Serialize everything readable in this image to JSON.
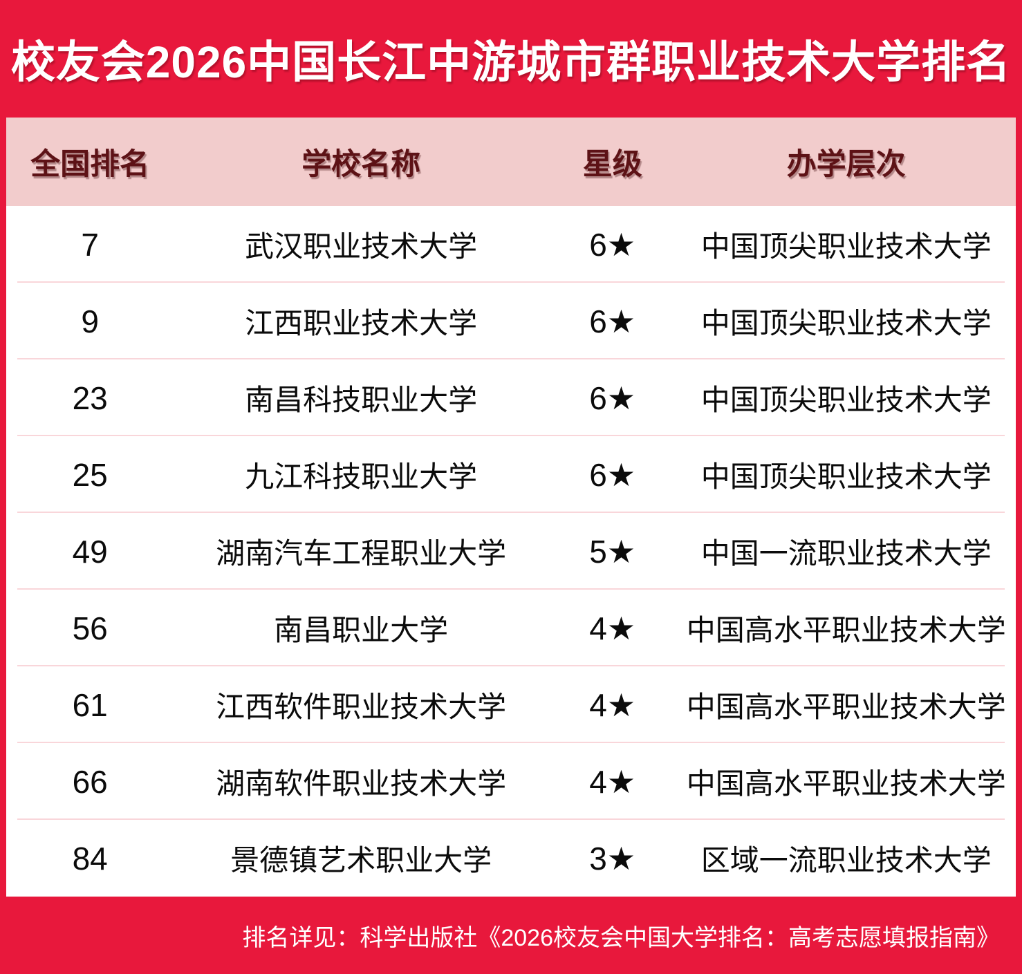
{
  "title": "校友会2026中国长江中游城市群职业技术大学排名",
  "chart_data": {
    "type": "table",
    "title": "校友会2026中国长江中游城市群职业技术大学排名",
    "columns": [
      "全国排名",
      "学校名称",
      "星级",
      "办学层次"
    ],
    "rows": [
      {
        "rank": "7",
        "school": "武汉职业技术大学",
        "stars": "6★",
        "level": "中国顶尖职业技术大学"
      },
      {
        "rank": "9",
        "school": "江西职业技术大学",
        "stars": "6★",
        "level": "中国顶尖职业技术大学"
      },
      {
        "rank": "23",
        "school": "南昌科技职业大学",
        "stars": "6★",
        "level": "中国顶尖职业技术大学"
      },
      {
        "rank": "25",
        "school": "九江科技职业大学",
        "stars": "6★",
        "level": "中国顶尖职业技术大学"
      },
      {
        "rank": "49",
        "school": "湖南汽车工程职业大学",
        "stars": "5★",
        "level": "中国一流职业技术大学"
      },
      {
        "rank": "56",
        "school": "南昌职业大学",
        "stars": "4★",
        "level": "中国高水平职业技术大学"
      },
      {
        "rank": "61",
        "school": "江西软件职业技术大学",
        "stars": "4★",
        "level": "中国高水平职业技术大学"
      },
      {
        "rank": "66",
        "school": "湖南软件职业技术大学",
        "stars": "4★",
        "level": "中国高水平职业技术大学"
      },
      {
        "rank": "84",
        "school": "景德镇艺术职业大学",
        "stars": "3★",
        "level": "区域一流职业技术大学"
      }
    ],
    "footnote": "排名详见：科学出版社《2026校友会中国大学排名：高考志愿填报指南》"
  },
  "footer": {
    "note": "排名详见：科学出版社《2026校友会中国大学排名：高考志愿填报指南》"
  },
  "colors": {
    "accent_red": "#E8183C",
    "header_pink": "#F2CCCC",
    "header_text": "#5D1216",
    "divider_pink": "#F9D6DA",
    "title_text": "#FFFFFF",
    "body_text": "#0B0B0B"
  }
}
